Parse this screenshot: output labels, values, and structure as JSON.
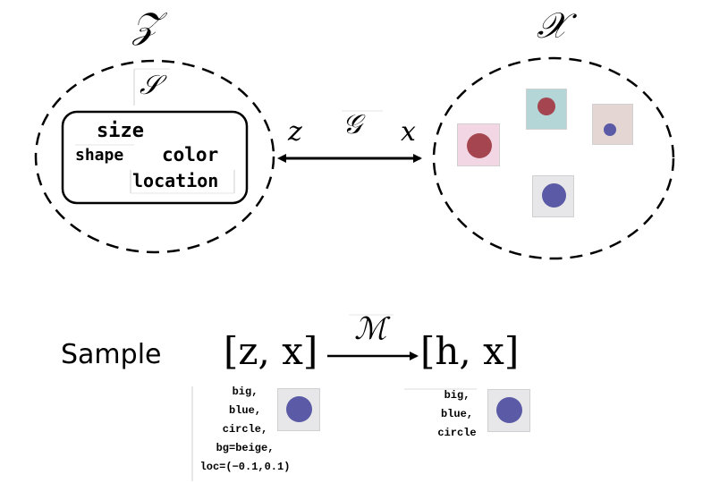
{
  "latent_space": {
    "title": "𝒵",
    "structure_label": "𝒮",
    "attributes": [
      "size",
      "shape",
      "color",
      "location"
    ]
  },
  "data_space": {
    "title": "𝒳"
  },
  "generator": {
    "label": "𝒢",
    "left_var": "z",
    "right_var": "x"
  },
  "sample": {
    "label": "Sample",
    "left_tuple": "[z, x]",
    "mapping_label": "ℳ",
    "right_tuple": "[h, x]",
    "z_description": [
      "big,",
      "blue,",
      "circle,",
      "bg=beige,",
      "loc=(−0.1,0.1)"
    ],
    "h_description": [
      "big,",
      "blue,",
      "circle"
    ]
  },
  "colors": {
    "dot_red": "#a4454f",
    "dot_blue": "#5a5aa6",
    "bg_pink": "#f3d6e4",
    "bg_teal": "#b5d6d6",
    "bg_beige": "#e4d6d2",
    "bg_gray": "#e7e7e9"
  }
}
